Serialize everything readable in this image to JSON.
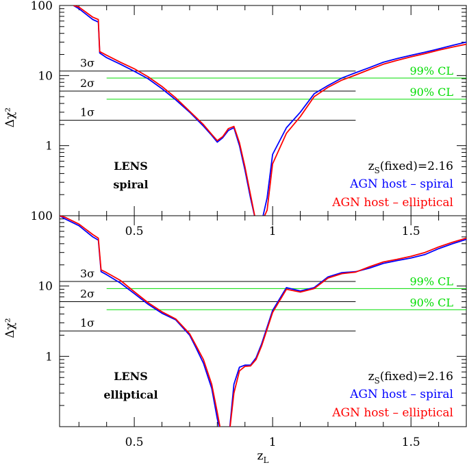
{
  "colors": {
    "spiral": "#0000ff",
    "elliptical": "#ff0000",
    "cl": "#00dd00",
    "sigma": "#000000"
  },
  "chart_data": [
    {
      "type": "line",
      "panel_label": [
        "LENS",
        "spiral"
      ],
      "xlabel": "",
      "ylabel": "Δχ²",
      "xlim": [
        0.23,
        1.7
      ],
      "ylim": [
        0.1,
        100
      ],
      "yscale": "log",
      "xticks": [
        "0.5",
        "1",
        "1.5"
      ],
      "yticks": [
        "1",
        "10",
        "100"
      ],
      "legend": [
        "z_S(fixed)=2.16",
        "AGN host – spiral",
        "AGN host – elliptical"
      ],
      "sigma_lines": [
        {
          "label": "3σ",
          "y": 11.6,
          "x": [
            0.23,
            1.3
          ]
        },
        {
          "label": "2σ",
          "y": 6.0,
          "x": [
            0.23,
            1.3
          ]
        },
        {
          "label": "1σ",
          "y": 2.3,
          "x": [
            0.23,
            1.3
          ]
        }
      ],
      "cl_lines": [
        {
          "label": "99% CL",
          "y": 9.2,
          "x": [
            0.4,
            1.7
          ]
        },
        {
          "label": "90% CL",
          "y": 4.6,
          "x": [
            0.4,
            1.7
          ]
        }
      ],
      "series": [
        {
          "name": "AGN host – spiral",
          "color": "spiral",
          "x": [
            0.28,
            0.3,
            0.35,
            0.37,
            0.375,
            0.4,
            0.45,
            0.5,
            0.55,
            0.6,
            0.65,
            0.7,
            0.75,
            0.78,
            0.8,
            0.82,
            0.84,
            0.86,
            0.88,
            0.9,
            0.92,
            0.94,
            0.96,
            0.98,
            1.0,
            1.05,
            1.1,
            1.15,
            1.2,
            1.25,
            1.3,
            1.35,
            1.4,
            1.45,
            1.5,
            1.55,
            1.6,
            1.65,
            1.7
          ],
          "y": [
            100,
            90,
            63,
            58,
            21,
            18,
            14.5,
            11.5,
            9.0,
            6.5,
            4.5,
            3.0,
            1.9,
            1.4,
            1.12,
            1.3,
            1.65,
            1.8,
            1.0,
            0.45,
            0.18,
            0.08,
            0.08,
            0.18,
            0.75,
            1.8,
            3.0,
            5.5,
            7.2,
            9.2,
            11.0,
            13.0,
            15.5,
            17.5,
            19.5,
            21.5,
            24.0,
            27.0,
            30.0
          ]
        },
        {
          "name": "AGN host – elliptical",
          "color": "elliptical",
          "x": [
            0.28,
            0.3,
            0.35,
            0.37,
            0.375,
            0.4,
            0.45,
            0.5,
            0.55,
            0.6,
            0.65,
            0.7,
            0.75,
            0.78,
            0.8,
            0.82,
            0.84,
            0.86,
            0.88,
            0.9,
            0.92,
            0.94,
            0.96,
            0.98,
            1.0,
            1.05,
            1.1,
            1.15,
            1.2,
            1.25,
            1.3,
            1.35,
            1.4,
            1.45,
            1.5,
            1.55,
            1.6,
            1.65,
            1.7
          ],
          "y": [
            100,
            95,
            68,
            63,
            22,
            19.5,
            15.5,
            12.5,
            9.6,
            7.0,
            4.8,
            3.1,
            2.0,
            1.45,
            1.18,
            1.35,
            1.75,
            1.88,
            1.1,
            0.5,
            0.2,
            0.08,
            0.08,
            0.12,
            0.55,
            1.5,
            2.6,
            5.0,
            6.8,
            8.6,
            10.2,
            12.2,
            14.5,
            16.5,
            18.5,
            20.5,
            23.0,
            25.5,
            28.0
          ]
        }
      ]
    },
    {
      "type": "line",
      "panel_label": [
        "LENS",
        "elliptical"
      ],
      "xlabel": "z_L",
      "ylabel": "Δχ²",
      "xlim": [
        0.23,
        1.7
      ],
      "ylim": [
        0.1,
        100
      ],
      "yscale": "log",
      "xticks": [
        "0.5",
        "1",
        "1.5"
      ],
      "yticks": [
        "1",
        "10",
        "100"
      ],
      "legend": [
        "z_S(fixed)=2.16",
        "AGN host – spiral",
        "AGN host – elliptical"
      ],
      "sigma_lines": [
        {
          "label": "3σ",
          "y": 11.6,
          "x": [
            0.23,
            1.3
          ]
        },
        {
          "label": "2σ",
          "y": 6.0,
          "x": [
            0.23,
            1.3
          ]
        },
        {
          "label": "1σ",
          "y": 2.3,
          "x": [
            0.23,
            1.3
          ]
        }
      ],
      "cl_lines": [
        {
          "label": "99% CL",
          "y": 9.2,
          "x": [
            0.4,
            1.7
          ]
        },
        {
          "label": "90% CL",
          "y": 4.6,
          "x": [
            0.4,
            1.7
          ]
        }
      ],
      "series": [
        {
          "name": "AGN host – spiral",
          "color": "spiral",
          "x": [
            0.23,
            0.25,
            0.3,
            0.35,
            0.37,
            0.38,
            0.4,
            0.45,
            0.5,
            0.55,
            0.6,
            0.65,
            0.7,
            0.72,
            0.75,
            0.78,
            0.8,
            0.82,
            0.84,
            0.86,
            0.88,
            0.9,
            0.92,
            0.94,
            0.96,
            1.0,
            1.05,
            1.1,
            1.15,
            1.2,
            1.25,
            1.3,
            1.35,
            1.4,
            1.45,
            1.5,
            1.55,
            1.6,
            1.65,
            1.7
          ],
          "y": [
            100,
            90,
            72,
            50,
            45,
            16,
            14.5,
            11.0,
            7.8,
            5.5,
            4.1,
            3.3,
            2.0,
            1.4,
            0.8,
            0.35,
            0.13,
            0.06,
            0.06,
            0.4,
            0.7,
            0.75,
            0.75,
            0.95,
            1.5,
            4.5,
            9.5,
            8.5,
            9.5,
            13.5,
            15.5,
            16.0,
            18.0,
            21.0,
            23.0,
            25.0,
            28.0,
            34.0,
            40.0,
            46.0
          ]
        },
        {
          "name": "AGN host – elliptical",
          "color": "elliptical",
          "x": [
            0.23,
            0.25,
            0.3,
            0.35,
            0.37,
            0.38,
            0.4,
            0.45,
            0.5,
            0.55,
            0.6,
            0.65,
            0.7,
            0.72,
            0.75,
            0.78,
            0.8,
            0.82,
            0.84,
            0.86,
            0.88,
            0.9,
            0.92,
            0.94,
            0.96,
            1.0,
            1.05,
            1.1,
            1.15,
            1.2,
            1.25,
            1.3,
            1.35,
            1.4,
            1.45,
            1.5,
            1.55,
            1.6,
            1.65,
            1.7
          ],
          "y": [
            100,
            95,
            76,
            54,
            48,
            17,
            15.5,
            12.0,
            8.3,
            5.8,
            4.3,
            3.4,
            2.1,
            1.5,
            0.9,
            0.4,
            0.16,
            0.06,
            0.06,
            0.3,
            0.62,
            0.72,
            0.73,
            0.9,
            1.4,
            4.2,
            9.0,
            8.2,
            9.2,
            13.0,
            15.0,
            15.8,
            18.8,
            22.0,
            24.0,
            26.5,
            30.0,
            36.0,
            42.0,
            48.0
          ]
        }
      ]
    }
  ]
}
